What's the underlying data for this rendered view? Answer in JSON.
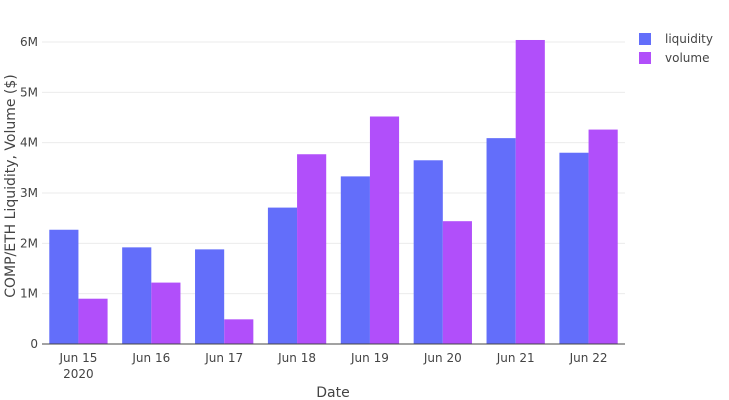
{
  "chart_data": {
    "type": "bar",
    "categories": [
      "Jun 15",
      "Jun 16",
      "Jun 17",
      "Jun 18",
      "Jun 19",
      "Jun 20",
      "Jun 21",
      "Jun 22"
    ],
    "first_category_sublabel": "2020",
    "series": [
      {
        "name": "liquidity",
        "color": "#636efa",
        "values": [
          2270000,
          1920000,
          1880000,
          2710000,
          3330000,
          3650000,
          4090000,
          3800000
        ]
      },
      {
        "name": "volume",
        "color": "#b14ffa",
        "values": [
          900000,
          1220000,
          490000,
          3770000,
          4520000,
          2440000,
          6040000,
          4260000
        ]
      }
    ],
    "title": "",
    "xlabel": "Date",
    "ylabel": "COMP/ETH Liquidity, Volume ($)",
    "ylim": [
      0,
      6000000
    ],
    "yticks": [
      0,
      1000000,
      2000000,
      3000000,
      4000000,
      5000000,
      6000000
    ],
    "ytick_labels": [
      "0",
      "1M",
      "2M",
      "3M",
      "4M",
      "5M",
      "6M"
    ],
    "grid": true,
    "legend_position": "top-right"
  }
}
